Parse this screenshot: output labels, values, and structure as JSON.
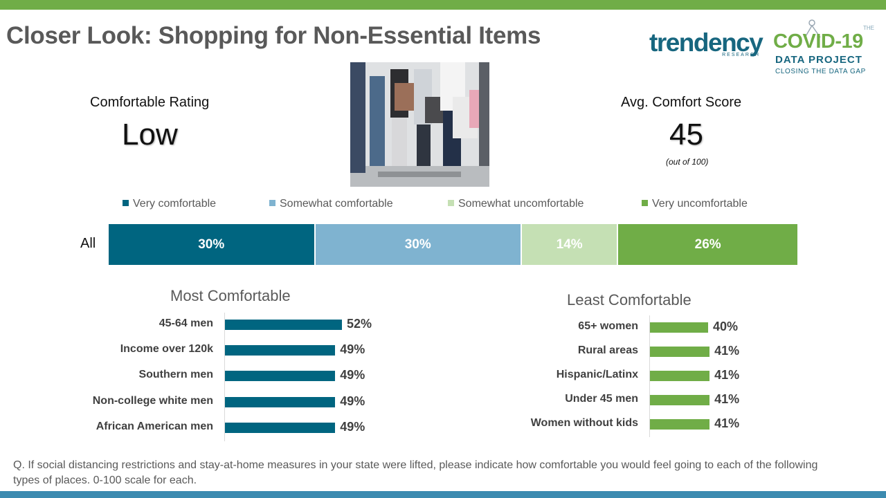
{
  "title": "Closer Look: Shopping for Non-Essential Items",
  "logos": {
    "trendency_word": "trendency",
    "trendency_sub": "RESEARCH",
    "covid_the": "THE",
    "covid_title": "COVID-19",
    "covid_sub": "DATA PROJECT",
    "covid_tagline": "CLOSING THE DATA GAP"
  },
  "kpis": {
    "rating_label": "Comfortable Rating",
    "rating_value": "Low",
    "score_label": "Avg. Comfort Score",
    "score_value": "45",
    "score_note": "(out of 100)"
  },
  "colors": {
    "very_comfortable": "#006580",
    "somewhat_comfortable": "#7fb3d0",
    "somewhat_uncomfortable": "#c5e0b4",
    "very_uncomfortable": "#70ad47"
  },
  "chart_data": [
    {
      "type": "bar",
      "orientation": "horizontal",
      "stacked": true,
      "categories": [
        "All"
      ],
      "series": [
        {
          "name": "Very comfortable",
          "values": [
            30
          ],
          "label": "30%"
        },
        {
          "name": "Somewhat comfortable",
          "values": [
            30
          ],
          "label": "30%"
        },
        {
          "name": "Somewhat uncomfortable",
          "values": [
            14
          ],
          "label": "14%"
        },
        {
          "name": "Very uncomfortable",
          "values": [
            26
          ],
          "label": "26%"
        }
      ],
      "legend": "top"
    },
    {
      "type": "bar",
      "orientation": "horizontal",
      "title": "Most Comfortable",
      "categories": [
        "45-64 men",
        "Income over 120k",
        "Southern men",
        "Non-college white men",
        "African American men"
      ],
      "values": [
        52,
        49,
        49,
        49,
        49
      ],
      "labels": [
        "52%",
        "49%",
        "49%",
        "49%",
        "49%"
      ]
    },
    {
      "type": "bar",
      "orientation": "horizontal",
      "title": "Least Comfortable",
      "categories": [
        "65+ women",
        "Rural areas",
        "Hispanic/Latinx",
        "Under 45 men",
        "Women without kids"
      ],
      "values": [
        40,
        41,
        41,
        41,
        41
      ],
      "labels": [
        "40%",
        "41%",
        "41%",
        "41%",
        "41%"
      ]
    }
  ],
  "footnote": "Q. If social distancing restrictions and stay-at-home measures in your state were lifted, please indicate how comfortable you would feel going to each of the following types of places. 0-100 scale for each."
}
